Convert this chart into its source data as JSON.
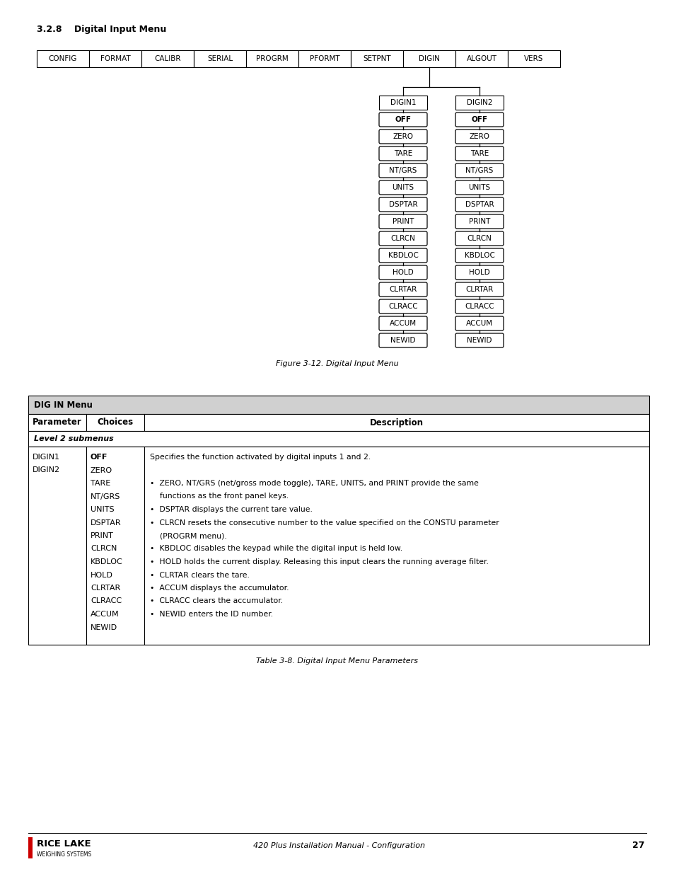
{
  "title_section": "3.2.8    Digital Input Menu",
  "figure_caption": "Figure 3-12. Digital Input Menu",
  "table_caption": "Table 3-8. Digital Input Menu Parameters",
  "top_menu_items": [
    "CONFIG",
    "FORMAT",
    "CALIBR",
    "SERIAL",
    "PROGRM",
    "PFORMT",
    "SETPNT",
    "DIGIN",
    "ALGOUT",
    "VERS"
  ],
  "digin_index": 7,
  "digin1_items": [
    "OFF",
    "ZERO",
    "TARE",
    "NT/GRS",
    "UNITS",
    "DSPTAR",
    "PRINT",
    "CLRCN",
    "KBDLOC",
    "HOLD",
    "CLRTAR",
    "CLRACC",
    "ACCUM",
    "NEWID"
  ],
  "digin2_items": [
    "OFF",
    "ZERO",
    "TARE",
    "NT/GRS",
    "UNITS",
    "DSPTAR",
    "PRINT",
    "CLRCN",
    "KBDLOC",
    "HOLD",
    "CLRTAR",
    "CLRACC",
    "ACCUM",
    "NEWID"
  ],
  "table_title_bg": "#d0d0d0",
  "footer_text": "420 Plus Installation Manual - Configuration",
  "footer_page": "27",
  "bg_color": "#ffffff",
  "desc_lines": [
    "Specifies the function activated by digital inputs 1 and 2.",
    "",
    "•  ZERO, NT/GRS (net/gross mode toggle), TARE, UNITS, and PRINT provide the same",
    "    functions as the front panel keys.",
    "•  DSPTAR displays the current tare value.",
    "•  CLRCN resets the consecutive number to the value specified on the CONSTU parameter",
    "    (PROGRM menu).",
    "•  KBDLOC disables the keypad while the digital input is held low.",
    "•  HOLD holds the current display. Releasing this input clears the running average filter.",
    "•  CLRTAR clears the tare.",
    "•  ACCUM displays the accumulator.",
    "•  CLRACC clears the accumulator.",
    "•  NEWID enters the ID number."
  ]
}
